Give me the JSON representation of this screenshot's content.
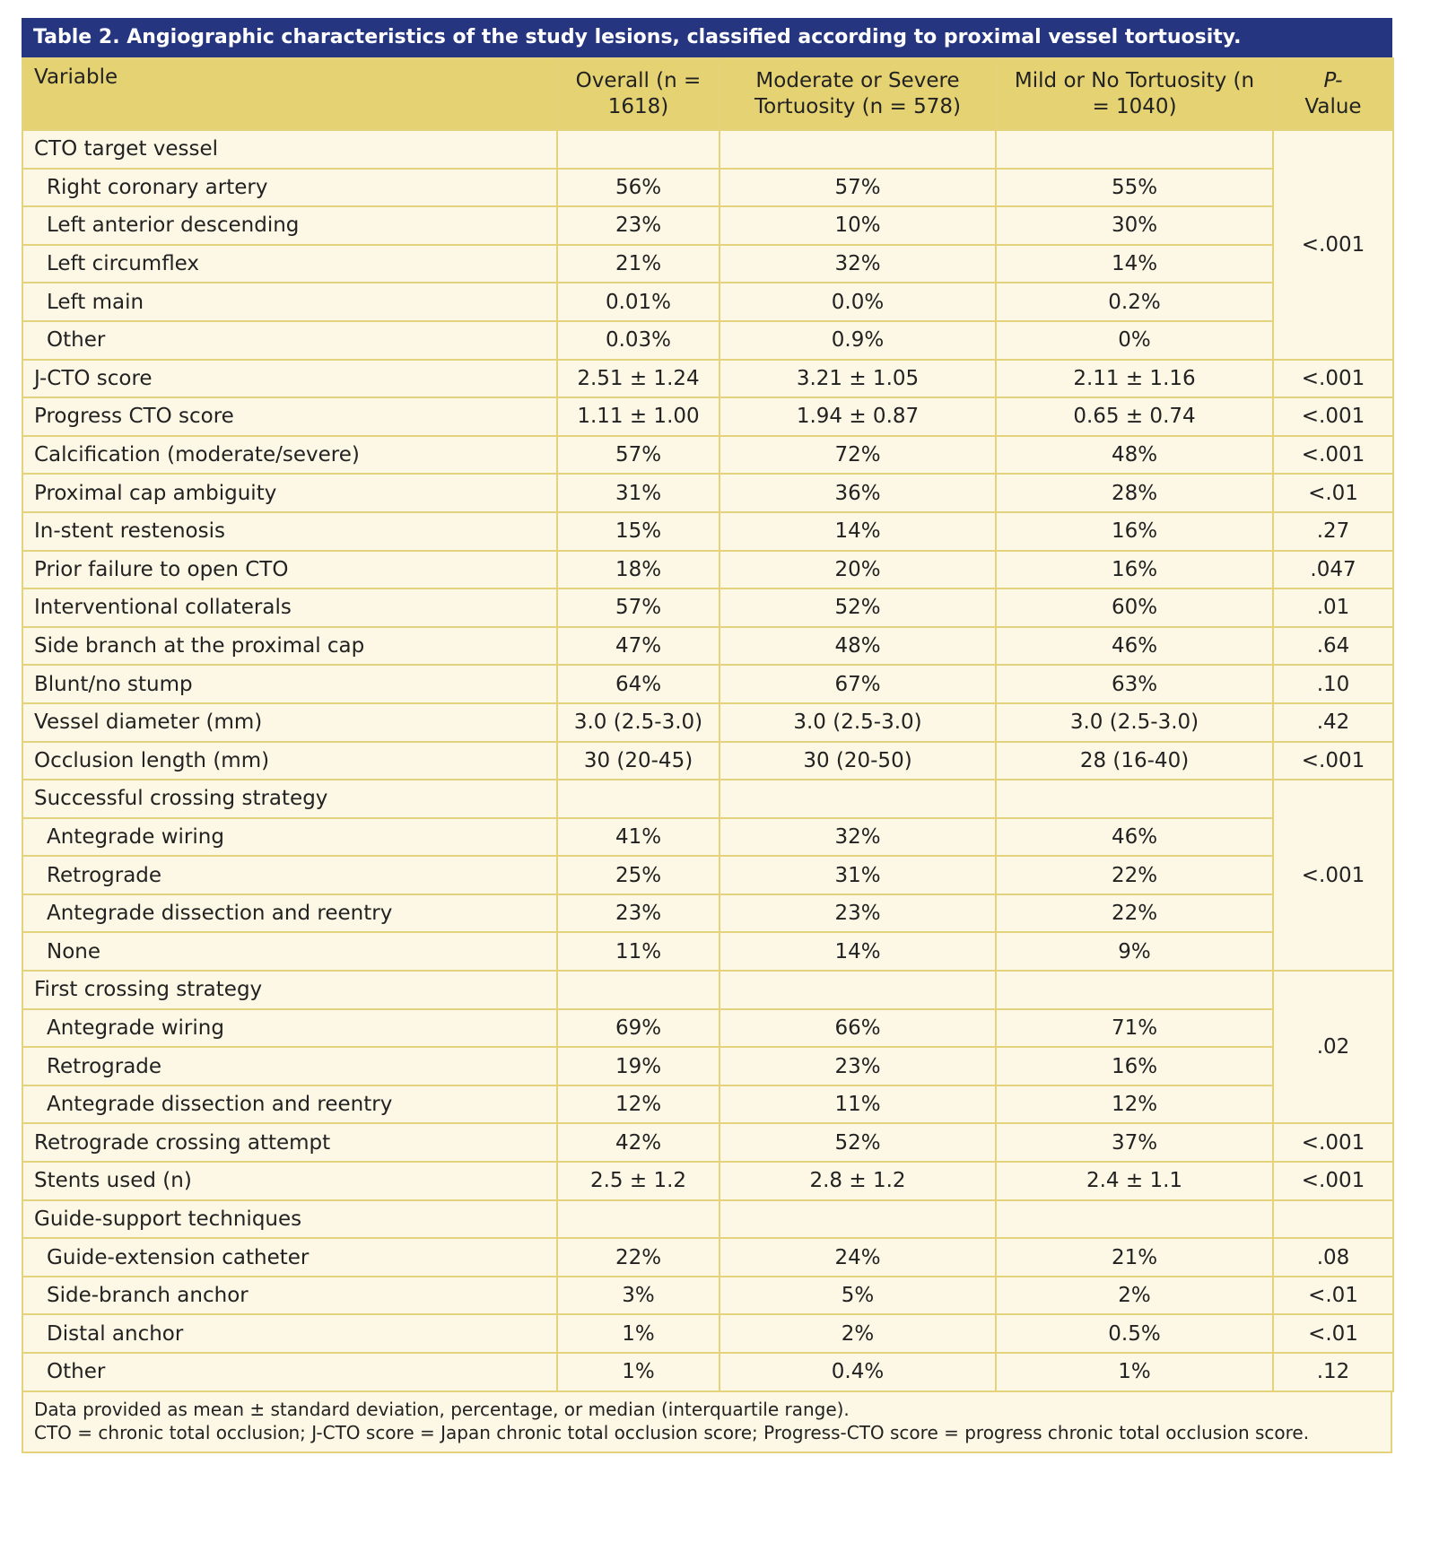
{
  "title": "Table 2. Angiographic characteristics of the study lesions, classified according to proximal vessel tortuosity.",
  "header": {
    "variable": "Variable",
    "overall": "Overall (n = 1618)",
    "moderate": "Moderate or Severe Tortuosity (n = 578)",
    "mild": "Mild or No Tortuosity (n = 1040)",
    "p_italic": "P-",
    "p_rest": "Value"
  },
  "table": {
    "items": [
      {
        "variable": "CTO target vessel",
        "p": "<.001",
        "rows": [
          {
            "variable": "Right coronary artery",
            "overall": "56%",
            "moderate": "57%",
            "mild": "55%"
          },
          {
            "variable": "Left anterior descending",
            "overall": "23%",
            "moderate": "10%",
            "mild": "30%"
          },
          {
            "variable": "Left circumflex",
            "overall": "21%",
            "moderate": "32%",
            "mild": "14%"
          },
          {
            "variable": "Left main",
            "overall": "0.01%",
            "moderate": "0.0%",
            "mild": "0.2%"
          },
          {
            "variable": "Other",
            "overall": "0.03%",
            "moderate": "0.9%",
            "mild": "0%"
          }
        ]
      },
      {
        "variable": "J-CTO score",
        "overall": "2.51 ± 1.24",
        "moderate": "3.21 ± 1.05",
        "mild": "2.11 ± 1.16",
        "p": "<.001"
      },
      {
        "variable": "Progress CTO score",
        "overall": "1.11 ± 1.00",
        "moderate": "1.94 ± 0.87",
        "mild": "0.65 ± 0.74",
        "p": "<.001"
      },
      {
        "variable": "Calcification (moderate/severe)",
        "overall": "57%",
        "moderate": "72%",
        "mild": "48%",
        "p": "<.001"
      },
      {
        "variable": "Proximal cap ambiguity",
        "overall": "31%",
        "moderate": "36%",
        "mild": "28%",
        "p": "<.01"
      },
      {
        "variable": "In-stent restenosis",
        "overall": "15%",
        "moderate": "14%",
        "mild": "16%",
        "p": ".27"
      },
      {
        "variable": "Prior failure to open CTO",
        "overall": "18%",
        "moderate": "20%",
        "mild": "16%",
        "p": ".047"
      },
      {
        "variable": "Interventional collaterals",
        "overall": "57%",
        "moderate": "52%",
        "mild": "60%",
        "p": ".01"
      },
      {
        "variable": "Side branch at the proximal cap",
        "overall": "47%",
        "moderate": "48%",
        "mild": "46%",
        "p": ".64"
      },
      {
        "variable": "Blunt/no stump",
        "overall": "64%",
        "moderate": "67%",
        "mild": "63%",
        "p": ".10"
      },
      {
        "variable": "Vessel diameter (mm)",
        "overall": "3.0 (2.5-3.0)",
        "moderate": "3.0 (2.5-3.0)",
        "mild": "3.0 (2.5-3.0)",
        "p": ".42"
      },
      {
        "variable": "Occlusion length (mm)",
        "overall": "30 (20-45)",
        "moderate": "30 (20-50)",
        "mild": "28 (16-40)",
        "p": "<.001"
      },
      {
        "variable": "Successful crossing strategy",
        "p": "<.001",
        "rows": [
          {
            "variable": "Antegrade wiring",
            "overall": "41%",
            "moderate": "32%",
            "mild": "46%"
          },
          {
            "variable": "Retrograde",
            "overall": "25%",
            "moderate": "31%",
            "mild": "22%"
          },
          {
            "variable": "Antegrade dissection and reentry",
            "overall": "23%",
            "moderate": "23%",
            "mild": "22%"
          },
          {
            "variable": "None",
            "overall": "11%",
            "moderate": "14%",
            "mild": "9%"
          }
        ]
      },
      {
        "variable": "First crossing strategy",
        "p": ".02",
        "rows": [
          {
            "variable": "Antegrade wiring",
            "overall": "69%",
            "moderate": "66%",
            "mild": "71%"
          },
          {
            "variable": "Retrograde",
            "overall": "19%",
            "moderate": "23%",
            "mild": "16%"
          },
          {
            "variable": "Antegrade dissection and reentry",
            "overall": "12%",
            "moderate": "11%",
            "mild": "12%"
          }
        ]
      },
      {
        "variable": "Retrograde crossing attempt",
        "overall": "42%",
        "moderate": "52%",
        "mild": "37%",
        "p": "<.001"
      },
      {
        "variable": "Stents used (n)",
        "overall": "2.5 ± 1.2",
        "moderate": "2.8 ± 1.2",
        "mild": "2.4 ± 1.1",
        "p": "<.001"
      },
      {
        "variable": "Guide-support techniques",
        "rows": [
          {
            "variable": "Guide-extension catheter",
            "overall": "22%",
            "moderate": "24%",
            "mild": "21%",
            "p": ".08"
          },
          {
            "variable": "Side-branch anchor",
            "overall": "3%",
            "moderate": "5%",
            "mild": "2%",
            "p": "<.01"
          },
          {
            "variable": "Distal anchor",
            "overall": "1%",
            "moderate": "2%",
            "mild": "0.5%",
            "p": "<.01"
          },
          {
            "variable": "Other",
            "overall": "1%",
            "moderate": "0.4%",
            "mild": "1%",
            "p": ".12"
          }
        ]
      }
    ]
  },
  "footnotes": [
    "Data provided as mean ± standard deviation, percentage, or median (interquartile range).",
    "CTO = chronic total occlusion; J-CTO score = Japan chronic total occlusion score; Progress-CTO score = progress chronic total occlusion score."
  ]
}
